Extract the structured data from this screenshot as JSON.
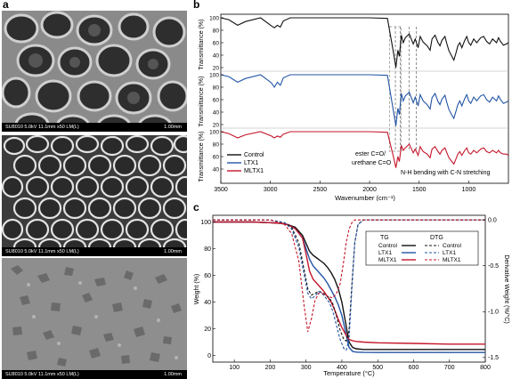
{
  "panels": {
    "a": {
      "label": "a",
      "images": [
        {
          "caption": "SU8010 5.0kV 11.1mm x50 LM(L)",
          "scale": "1.00mm"
        },
        {
          "caption": "SU8010 5.0kV 11.1mm x50 LM(L)",
          "scale": "1.00mm"
        },
        {
          "caption": "SU8010 5.0kV 11.1mm x50 LM(L)",
          "scale": "1.00mm"
        }
      ]
    },
    "b": {
      "label": "b",
      "xlabel": "Wavenumber (cm⁻¹)",
      "ylabel": "Transmittance (%)",
      "xticks": [
        3500,
        3000,
        2500,
        2000,
        1500,
        1000
      ],
      "yticks_top": [
        100,
        80,
        60,
        40,
        20
      ],
      "yticks_mid": [
        100,
        80,
        60,
        40,
        20
      ],
      "yticks_bottom": [
        100,
        80,
        60,
        40
      ],
      "legend": [
        "Control",
        "LTX1",
        "MLTX1"
      ],
      "annotations": {
        "ester1": "ester C=O/",
        "ester2": "urethane C=O",
        "nh": "N-H bending with C-N stretching"
      }
    },
    "c": {
      "label": "c",
      "xlabel": "Temperature (°C)",
      "ylabel_left": "Weight (%)",
      "ylabel_right": "Derivative Weight (%/°C)",
      "xticks": [
        100,
        200,
        300,
        400,
        500,
        600,
        700,
        800
      ],
      "yticks_left": [
        0,
        20,
        40,
        60,
        80,
        100
      ],
      "yticks_right": [
        "0.0",
        "-0.5",
        "-1.0",
        "-1.5"
      ],
      "legend_tg_title": "TG",
      "legend_dtg_title": "DTG",
      "legend": [
        "Control",
        "LTX1",
        "MLTX1"
      ]
    }
  },
  "colors": {
    "Control": "#111111",
    "LTX1": "#2255a4",
    "MLTX1": "#c4162a"
  },
  "chart_data": [
    {
      "type": "line",
      "xlabel": "Wavenumber (cm⁻¹)",
      "ylabel": "Transmittance (%)",
      "xlim": [
        3500,
        600
      ],
      "series": [
        {
          "name": "Control",
          "x": [
            3500,
            3420,
            3330,
            3250,
            3100,
            2990,
            2960,
            2930,
            2900,
            2870,
            2800,
            2400,
            2000,
            1820,
            1760,
            1735,
            1715,
            1700,
            1680,
            1660,
            1640,
            1600,
            1560,
            1540,
            1510,
            1490,
            1460,
            1420,
            1390,
            1370,
            1340,
            1310,
            1290,
            1270,
            1240,
            1220,
            1200,
            1170,
            1150,
            1130,
            1110,
            1090,
            1070,
            1040,
            1020,
            1000,
            980,
            950,
            920,
            880,
            850,
            820,
            790,
            760,
            720,
            700,
            680,
            650,
            620,
            600
          ],
          "y": [
            100,
            97,
            88,
            94,
            100,
            87,
            84,
            88,
            85,
            95,
            100,
            100,
            100,
            99,
            45,
            20,
            48,
            38,
            72,
            60,
            68,
            74,
            58,
            66,
            52,
            70,
            61,
            55,
            48,
            66,
            72,
            60,
            55,
            64,
            70,
            58,
            47,
            38,
            32,
            43,
            55,
            60,
            52,
            64,
            70,
            60,
            56,
            66,
            60,
            68,
            70,
            62,
            58,
            66,
            60,
            68,
            62,
            56,
            58,
            60
          ]
        },
        {
          "name": "LTX1",
          "x": [
            3500,
            3420,
            3330,
            3250,
            3100,
            2990,
            2960,
            2930,
            2900,
            2870,
            2800,
            2400,
            2000,
            1820,
            1760,
            1735,
            1715,
            1700,
            1680,
            1660,
            1640,
            1600,
            1560,
            1540,
            1510,
            1490,
            1460,
            1420,
            1390,
            1370,
            1340,
            1310,
            1290,
            1270,
            1240,
            1220,
            1200,
            1170,
            1150,
            1130,
            1110,
            1090,
            1070,
            1040,
            1020,
            1000,
            980,
            950,
            920,
            880,
            850,
            820,
            790,
            760,
            720,
            700,
            680,
            650,
            620,
            600
          ],
          "y": [
            100,
            97,
            88,
            94,
            100,
            87,
            80,
            88,
            83,
            95,
            100,
            100,
            100,
            99,
            42,
            18,
            46,
            36,
            70,
            58,
            66,
            72,
            55,
            64,
            50,
            68,
            58,
            52,
            45,
            63,
            70,
            57,
            52,
            61,
            67,
            55,
            44,
            35,
            30,
            41,
            52,
            58,
            50,
            62,
            68,
            58,
            54,
            64,
            58,
            66,
            68,
            60,
            56,
            64,
            58,
            66,
            60,
            54,
            56,
            58
          ]
        },
        {
          "name": "MLTX1",
          "x": [
            3500,
            3420,
            3330,
            3250,
            3100,
            2990,
            2960,
            2930,
            2900,
            2870,
            2800,
            2400,
            2000,
            1820,
            1760,
            1735,
            1715,
            1700,
            1680,
            1660,
            1640,
            1600,
            1560,
            1540,
            1510,
            1490,
            1460,
            1420,
            1390,
            1370,
            1340,
            1310,
            1290,
            1270,
            1240,
            1220,
            1200,
            1170,
            1150,
            1130,
            1110,
            1090,
            1070,
            1040,
            1020,
            1000,
            980,
            950,
            920,
            880,
            850,
            820,
            790,
            760,
            720,
            700,
            680,
            650,
            620,
            600
          ],
          "y": [
            100,
            97,
            90,
            95,
            100,
            93,
            90,
            93,
            91,
            96,
            100,
            100,
            100,
            99,
            60,
            42,
            60,
            52,
            78,
            70,
            74,
            80,
            66,
            72,
            62,
            76,
            68,
            64,
            58,
            72,
            76,
            68,
            64,
            70,
            74,
            66,
            58,
            52,
            48,
            56,
            64,
            68,
            62,
            70,
            74,
            66,
            64,
            70,
            66,
            72,
            74,
            68,
            66,
            70,
            66,
            70,
            66,
            64,
            64,
            62
          ]
        }
      ]
    },
    {
      "type": "line",
      "xlabel": "Temperature (°C)",
      "ylabel": "Weight (%)",
      "xlim": [
        40,
        800
      ],
      "ylim": [
        -5,
        105
      ],
      "series": [
        {
          "name": "Control",
          "x": [
            40,
            100,
            150,
            200,
            230,
            250,
            270,
            290,
            300,
            310,
            320,
            330,
            340,
            350,
            360,
            370,
            380,
            390,
            400,
            410,
            420,
            430,
            440,
            460,
            500,
            600,
            700,
            800
          ],
          "y": [
            100,
            100,
            100,
            99.5,
            99,
            98,
            96,
            90,
            84,
            78,
            75,
            73,
            71,
            69,
            66,
            62,
            57,
            50,
            40,
            25,
            10,
            6,
            5,
            4.5,
            4.5,
            4.5,
            4.5,
            4.5
          ]
        },
        {
          "name": "LTX1",
          "x": [
            40,
            100,
            150,
            200,
            230,
            250,
            270,
            290,
            300,
            310,
            320,
            330,
            340,
            350,
            360,
            370,
            380,
            390,
            400,
            410,
            420,
            430,
            440,
            460,
            500,
            600,
            700,
            800
          ],
          "y": [
            100,
            100,
            100,
            99.5,
            99,
            98,
            95,
            88,
            80,
            72,
            67,
            64,
            61,
            58,
            54,
            49,
            44,
            38,
            30,
            18,
            6,
            3,
            2.5,
            2.3,
            2.2,
            2.2,
            2.2,
            2.2
          ]
        },
        {
          "name": "MLTX1",
          "x": [
            40,
            100,
            150,
            200,
            230,
            250,
            270,
            290,
            300,
            310,
            320,
            330,
            340,
            350,
            360,
            370,
            380,
            390,
            400,
            410,
            420,
            430,
            440,
            460,
            500,
            600,
            700,
            800
          ],
          "y": [
            100,
            100,
            100,
            99.5,
            99,
            98,
            95,
            88,
            76,
            63,
            57,
            54,
            51,
            48,
            44,
            40,
            34,
            27,
            21,
            16,
            12,
            11,
            10.5,
            10,
            9.5,
            9,
            8.5,
            8.5
          ]
        }
      ]
    },
    {
      "type": "line",
      "xlabel": "Temperature (°C)",
      "ylabel": "Derivative Weight (%/°C)",
      "xlim": [
        40,
        800
      ],
      "ylim": [
        -1.55,
        0.05
      ],
      "series": [
        {
          "name": "Control",
          "x": [
            40,
            200,
            240,
            260,
            280,
            295,
            305,
            315,
            325,
            335,
            345,
            355,
            365,
            375,
            385,
            395,
            405,
            412,
            420,
            428,
            436,
            445,
            460,
            500,
            800
          ],
          "y": [
            0,
            0,
            -0.03,
            -0.08,
            -0.25,
            -0.55,
            -0.75,
            -0.82,
            -0.8,
            -0.78,
            -0.79,
            -0.82,
            -0.85,
            -0.92,
            -1.05,
            -1.2,
            -1.3,
            -1.32,
            -1.2,
            -0.7,
            -0.25,
            -0.05,
            0,
            0,
            0
          ]
        },
        {
          "name": "LTX1",
          "x": [
            40,
            200,
            240,
            260,
            280,
            295,
            305,
            315,
            325,
            335,
            345,
            355,
            365,
            375,
            385,
            395,
            405,
            412,
            420,
            428,
            436,
            445,
            460,
            500,
            800
          ],
          "y": [
            0,
            0,
            -0.03,
            -0.1,
            -0.3,
            -0.6,
            -0.8,
            -0.86,
            -0.83,
            -0.78,
            -0.8,
            -0.85,
            -0.9,
            -1.0,
            -1.15,
            -1.3,
            -1.4,
            -1.42,
            -1.3,
            -0.75,
            -0.25,
            -0.05,
            0,
            0,
            0
          ]
        },
        {
          "name": "MLTX1",
          "x": [
            40,
            200,
            240,
            260,
            280,
            295,
            305,
            315,
            325,
            335,
            345,
            355,
            365,
            375,
            385,
            395,
            405,
            412,
            420,
            428,
            436,
            445,
            460,
            500,
            800
          ],
          "y": [
            0,
            0,
            -0.05,
            -0.15,
            -0.45,
            -0.95,
            -1.22,
            -1.08,
            -0.88,
            -0.8,
            -0.8,
            -0.82,
            -0.84,
            -0.85,
            -0.8,
            -0.7,
            -0.45,
            -0.25,
            -0.1,
            -0.03,
            0,
            0,
            0,
            0,
            0
          ]
        }
      ]
    }
  ]
}
